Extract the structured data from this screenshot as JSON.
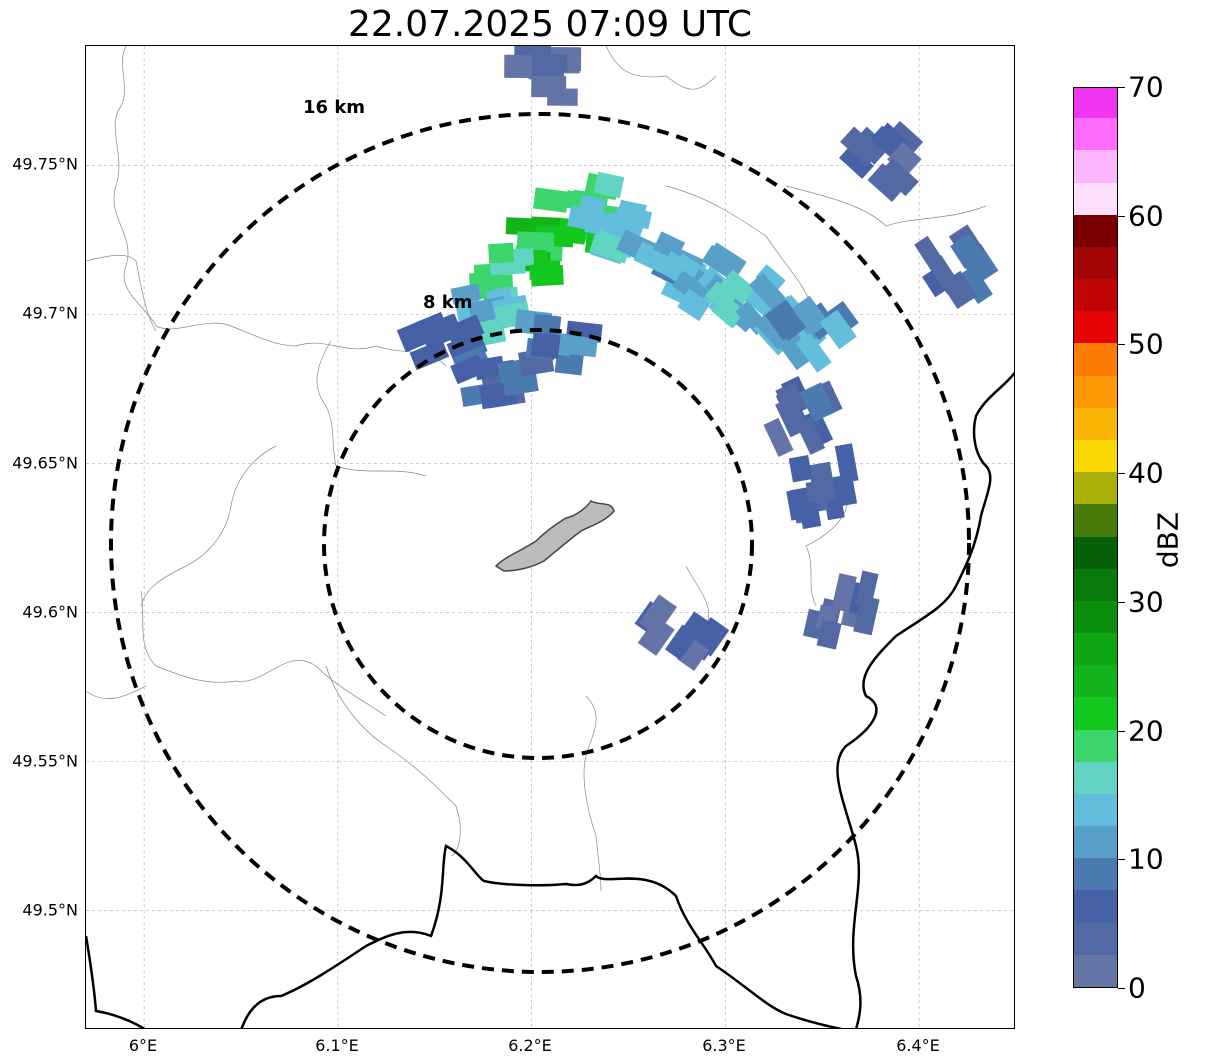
{
  "title": "22.07.2025 07:09 UTC",
  "map": {
    "extent": {
      "lon_min": 5.97,
      "lon_max": 6.45,
      "lat_min": 49.46,
      "lat_max": 49.79
    },
    "center": {
      "lon": 6.203,
      "lat": 49.623
    },
    "lat_ticks": [
      {
        "value": 49.75,
        "label": "49.75°N"
      },
      {
        "value": 49.7,
        "label": "49.7°N"
      },
      {
        "value": 49.65,
        "label": "49.65°N"
      },
      {
        "value": 49.6,
        "label": "49.6°N"
      },
      {
        "value": 49.55,
        "label": "49.55°N"
      },
      {
        "value": 49.5,
        "label": "49.5°N"
      }
    ],
    "lon_ticks": [
      {
        "value": 6.0,
        "label": "6°E"
      },
      {
        "value": 6.1,
        "label": "6.1°E"
      },
      {
        "value": 6.2,
        "label": "6.2°E"
      },
      {
        "value": 6.3,
        "label": "6.3°E"
      },
      {
        "value": 6.4,
        "label": "6.4°E"
      }
    ],
    "range_rings": [
      {
        "radius_km": 16,
        "label": "16 km"
      },
      {
        "radius_km": 8,
        "label": "8 km"
      }
    ]
  },
  "colorbar": {
    "label": "dBZ",
    "min": 0,
    "max": 70,
    "tick_labels": [
      "70",
      "60",
      "50",
      "40",
      "30",
      "20",
      "10",
      "0"
    ],
    "tick_values": [
      70,
      60,
      50,
      40,
      30,
      20,
      10,
      0
    ],
    "colors": [
      "#6474a6",
      "#5269a3",
      "#4661a6",
      "#4a7aaf",
      "#58a0c8",
      "#63bedc",
      "#62d4c4",
      "#3cd66c",
      "#12c81e",
      "#12b41a",
      "#0ea614",
      "#0a8e10",
      "#087a0c",
      "#066008",
      "#487a08",
      "#aab008",
      "#fcd804",
      "#fcb404",
      "#fc9804",
      "#fc7c04",
      "#e40404",
      "#c00404",
      "#a00404",
      "#780000",
      "#fce0fc",
      "#fcb4fc",
      "#fc6cfc",
      "#f034f0"
    ]
  },
  "echoes": [
    {
      "lon": 6.21,
      "lat": 49.722,
      "dbz": 22
    },
    {
      "lon": 6.225,
      "lat": 49.73,
      "dbz": 20
    },
    {
      "lon": 6.195,
      "lat": 49.712,
      "dbz": 18
    },
    {
      "lon": 6.18,
      "lat": 49.7,
      "dbz": 14
    },
    {
      "lon": 6.24,
      "lat": 49.735,
      "dbz": 16
    },
    {
      "lon": 6.255,
      "lat": 49.725,
      "dbz": 15
    },
    {
      "lon": 6.27,
      "lat": 49.715,
      "dbz": 12
    },
    {
      "lon": 6.29,
      "lat": 49.71,
      "dbz": 13
    },
    {
      "lon": 6.31,
      "lat": 49.705,
      "dbz": 14
    },
    {
      "lon": 6.33,
      "lat": 49.698,
      "dbz": 12
    },
    {
      "lon": 6.345,
      "lat": 49.69,
      "dbz": 11
    },
    {
      "lon": 6.16,
      "lat": 49.69,
      "dbz": 8
    },
    {
      "lon": 6.19,
      "lat": 49.675,
      "dbz": 6
    },
    {
      "lon": 6.215,
      "lat": 49.69,
      "dbz": 10
    },
    {
      "lon": 6.34,
      "lat": 49.665,
      "dbz": 5
    },
    {
      "lon": 6.35,
      "lat": 49.64,
      "dbz": 4
    },
    {
      "lon": 6.36,
      "lat": 49.6,
      "dbz": 3
    },
    {
      "lon": 6.38,
      "lat": 49.75,
      "dbz": 5
    },
    {
      "lon": 6.42,
      "lat": 49.715,
      "dbz": 6
    },
    {
      "lon": 6.275,
      "lat": 49.59,
      "dbz": 3
    },
    {
      "lon": 6.205,
      "lat": 49.778,
      "dbz": 2
    }
  ]
}
